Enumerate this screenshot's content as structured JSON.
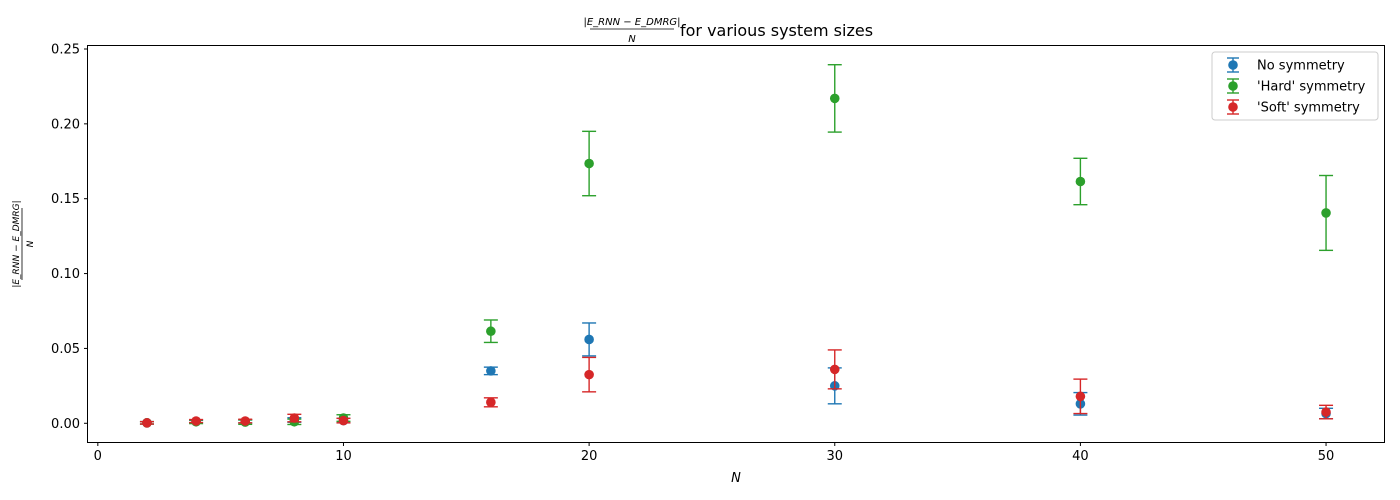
{
  "chart_data": {
    "type": "scatter",
    "title": {
      "numerator": "|E_RNN − E_DMRG|",
      "denominator": "N",
      "suffix": "for various system sizes"
    },
    "xlabel": "N",
    "ylabel": {
      "numerator": "|E_RNN − E_DMRG|",
      "denominator": "N"
    },
    "xlim": [
      -0.4,
      52.4
    ],
    "ylim": [
      -0.0125,
      0.252
    ],
    "xticks": [
      0,
      10,
      20,
      30,
      40,
      50
    ],
    "xtick_labels": [
      "0",
      "10",
      "20",
      "30",
      "40",
      "50"
    ],
    "yticks": [
      0.0,
      0.05,
      0.1,
      0.15,
      0.2,
      0.25
    ],
    "ytick_labels": [
      "0.00",
      "0.05",
      "0.10",
      "0.15",
      "0.20",
      "0.25"
    ],
    "grid": false,
    "legend_position": "top-right",
    "series": [
      {
        "name": "No symmetry",
        "color": "#1f77b4",
        "x": [
          2,
          4,
          6,
          8,
          10,
          16,
          20,
          30,
          40,
          50
        ],
        "y": [
          0.0003,
          0.0012,
          0.0012,
          0.0022,
          0.0018,
          0.035,
          0.056,
          0.025,
          0.013,
          0.0065
        ],
        "yerr": [
          0.0008,
          0.0008,
          0.001,
          0.0015,
          0.0015,
          0.0025,
          0.011,
          0.012,
          0.0075,
          0.0035
        ]
      },
      {
        "name": "'Hard' symmetry",
        "color": "#2ca02c",
        "x": [
          2,
          4,
          6,
          8,
          10,
          16,
          20,
          30,
          40,
          50
        ],
        "y": [
          0.0003,
          0.001,
          0.0008,
          0.001,
          0.0035,
          0.0615,
          0.1735,
          0.217,
          0.1615,
          0.1405
        ],
        "yerr": [
          0.0008,
          0.0012,
          0.0015,
          0.0018,
          0.0022,
          0.0075,
          0.0215,
          0.0225,
          0.0155,
          0.025
        ]
      },
      {
        "name": "'Soft' symmetry",
        "color": "#d62728",
        "x": [
          2,
          4,
          6,
          8,
          10,
          16,
          20,
          30,
          40,
          50
        ],
        "y": [
          0.0003,
          0.0015,
          0.0015,
          0.0035,
          0.0018,
          0.014,
          0.0325,
          0.036,
          0.018,
          0.0075
        ],
        "yerr": [
          0.0008,
          0.001,
          0.0012,
          0.0025,
          0.0015,
          0.003,
          0.0115,
          0.013,
          0.0115,
          0.0045
        ]
      }
    ]
  }
}
